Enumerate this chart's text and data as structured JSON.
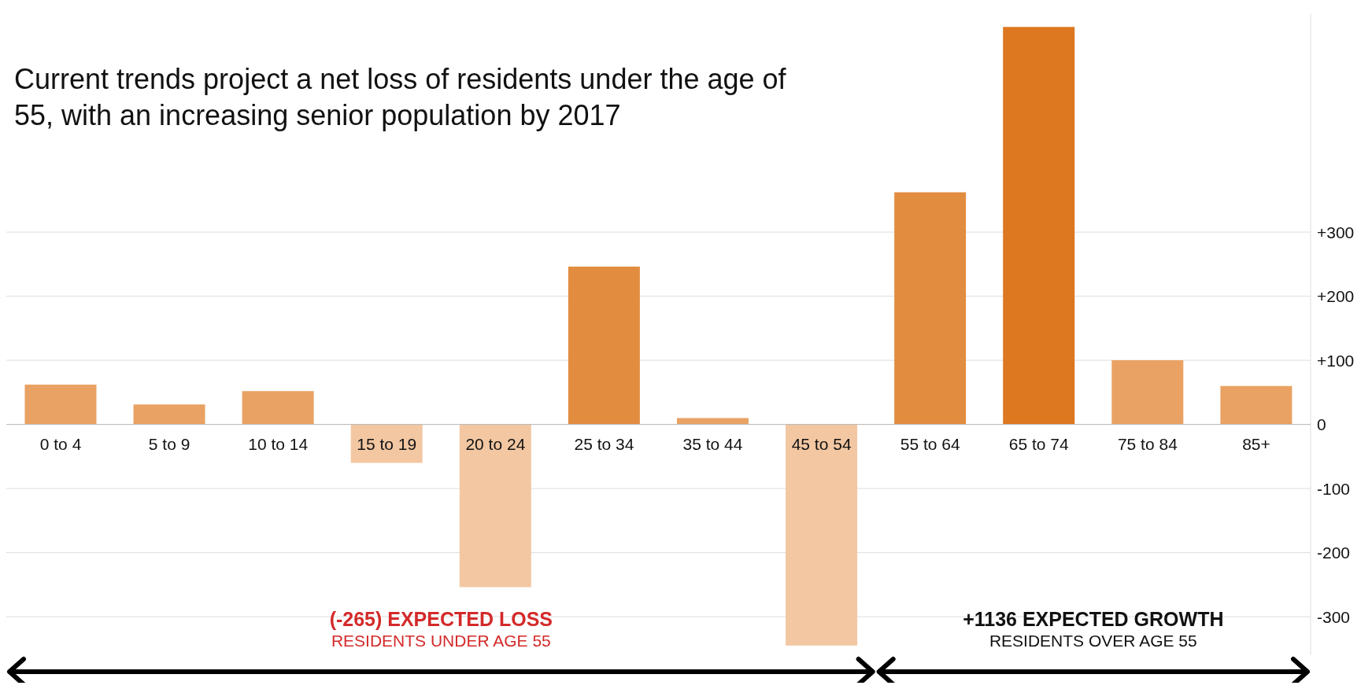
{
  "chart_data": {
    "type": "bar",
    "title": "Current trends project a net loss of residents under the age of 55, with an increasing senior population by 2017",
    "categories": [
      "0 to 4",
      "5 to 9",
      "10 to 14",
      "15 to 19",
      "20 to 24",
      "25 to 34",
      "35 to 44",
      "45 to 54",
      "55 to 64",
      "65 to 74",
      "75 to 84",
      "85+"
    ],
    "values": [
      62,
      31,
      52,
      -60,
      -254,
      246,
      10,
      -345,
      362,
      620,
      100,
      60
    ],
    "colors": [
      "#e9a263",
      "#e9a263",
      "#e9a263",
      "#f2c7a2",
      "#f2c7a2",
      "#e28c40",
      "#e9a263",
      "#f2c7a2",
      "#e28c40",
      "#dd7720",
      "#e9a263",
      "#e9a263"
    ],
    "ylim": [
      -360,
      640
    ],
    "yticks": [
      {
        "value": 300,
        "label": "+300"
      },
      {
        "value": 200,
        "label": "+200"
      },
      {
        "value": 100,
        "label": "+100"
      },
      0,
      -100,
      -200,
      -300
    ],
    "grid": "y",
    "annotations": [
      "(-265) EXPECTED LOSS",
      "RESIDENTS UNDER AGE 55",
      "+1136 EXPECTED GROWTH",
      "RESIDENTS OVER AGE 55"
    ]
  }
}
